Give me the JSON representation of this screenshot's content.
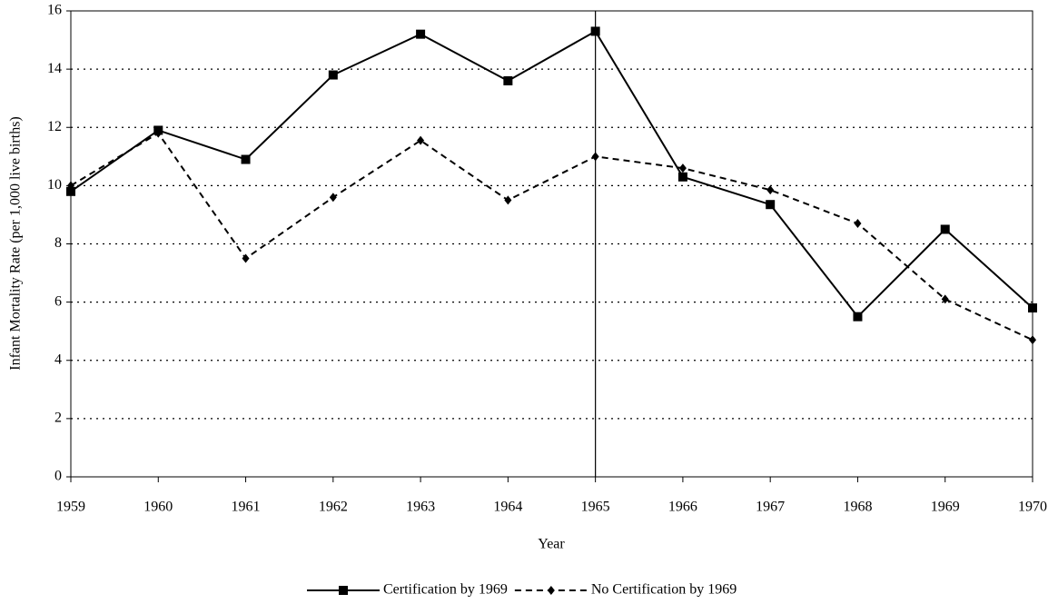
{
  "chart_data": {
    "type": "line",
    "x_label": "Year",
    "y_label": "Infant Mortality Rate (per 1,000 live births)",
    "x": [
      1959,
      1960,
      1961,
      1962,
      1963,
      1964,
      1965,
      1966,
      1967,
      1968,
      1969,
      1970
    ],
    "xlim": [
      1959,
      1970
    ],
    "xticks": [
      1959,
      1960,
      1961,
      1962,
      1963,
      1964,
      1965,
      1966,
      1967,
      1968,
      1969,
      1970
    ],
    "ylim": [
      0,
      16
    ],
    "yticks": [
      0,
      2,
      4,
      6,
      8,
      10,
      12,
      14,
      16
    ],
    "grid": true,
    "vlines": [
      1965
    ],
    "legend": "bottom",
    "series": [
      {
        "name": "Certification by 1969",
        "color": "#000000",
        "line_style": "solid",
        "marker": "square",
        "values": [
          9.8,
          11.9,
          10.9,
          13.8,
          15.2,
          13.6,
          15.3,
          10.3,
          9.35,
          5.5,
          8.5,
          5.8
        ]
      },
      {
        "name": "No Certification by 1969",
        "color": "#000000",
        "line_style": "dashed",
        "marker": "diamond",
        "values": [
          10.0,
          11.8,
          7.5,
          9.6,
          11.55,
          9.5,
          11.0,
          10.6,
          9.85,
          8.7,
          6.1,
          4.7
        ]
      }
    ]
  }
}
